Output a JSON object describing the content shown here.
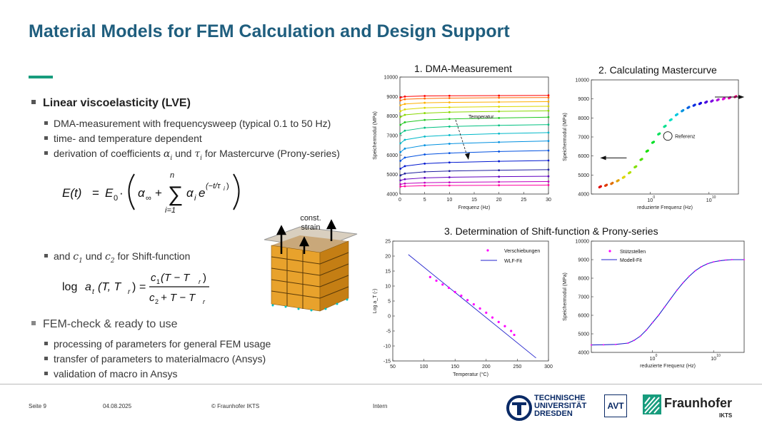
{
  "slide": {
    "title": "Material Models for FEM Calculation and Design Support"
  },
  "content": {
    "lve_heading": "Linear viscoelasticity (LVE)",
    "lve_items": [
      "DMA-measurement with frequencysweep (typical 0.1 to 50 Hz)",
      "time- and temperature dependent",
      "derivation of coefficients",
      "for Mastercurve (Prony-series)"
    ],
    "coef_alpha": "α",
    "coef_alpha_sub": "i",
    "coef_und": "und",
    "coef_tau": "τ",
    "coef_tau_sub": "i",
    "shift_prefix": "and",
    "shift_c1": "c",
    "shift_c1_sub": "1",
    "shift_und": "und",
    "shift_c2": "c",
    "shift_c2_sub": "2",
    "shift_suffix": "for Shift-function",
    "fem_heading": "FEM-check & ready to use",
    "fem_items": [
      "processing of parameters for general FEM usage",
      "transfer of parameters to materialmacro (Ansys)",
      "validation of macro in Ansys"
    ],
    "cube_label_1": "const.",
    "cube_label_2": "strain"
  },
  "charts": {
    "title_1": "1. DMA-Measurement",
    "title_2": "2. Calculating Mastercurve",
    "title_3": "3. Determination of Shift-function & Prony-series"
  },
  "chart_data": [
    {
      "type": "line",
      "xlabel": "Frequenz (Hz)",
      "ylabel": "Speichermodul (MPa)",
      "xlim": [
        0,
        30
      ],
      "ylim": [
        4000,
        10000
      ],
      "xticks": [
        0,
        5,
        10,
        15,
        20,
        25,
        30
      ],
      "yticks": [
        4000,
        5000,
        6000,
        7000,
        8000,
        9000,
        10000
      ],
      "annotation": "Temperatur",
      "x": [
        0.1,
        1,
        5,
        10,
        20,
        30
      ],
      "series": [
        {
          "color": "#ff0000",
          "values": [
            8950,
            9000,
            9030,
            9040,
            9050,
            9060
          ]
        },
        {
          "color": "#ff6a00",
          "values": [
            8800,
            8860,
            8900,
            8920,
            8940,
            8950
          ]
        },
        {
          "color": "#ffb000",
          "values": [
            8550,
            8620,
            8680,
            8700,
            8720,
            8740
          ]
        },
        {
          "color": "#d8d800",
          "values": [
            8250,
            8340,
            8420,
            8450,
            8480,
            8500
          ]
        },
        {
          "color": "#88d800",
          "values": [
            7950,
            8060,
            8150,
            8200,
            8240,
            8270
          ]
        },
        {
          "color": "#20c820",
          "values": [
            7550,
            7680,
            7800,
            7850,
            7900,
            7940
          ]
        },
        {
          "color": "#00c080",
          "values": [
            7100,
            7250,
            7400,
            7460,
            7520,
            7560
          ]
        },
        {
          "color": "#00b8c8",
          "values": [
            6600,
            6780,
            6950,
            7020,
            7100,
            7150
          ]
        },
        {
          "color": "#0090e0",
          "values": [
            6150,
            6330,
            6500,
            6580,
            6660,
            6720
          ]
        },
        {
          "color": "#0050e0",
          "values": [
            5700,
            5870,
            6030,
            6100,
            6180,
            6230
          ]
        },
        {
          "color": "#0018d0",
          "values": [
            5300,
            5430,
            5560,
            5620,
            5680,
            5720
          ]
        },
        {
          "color": "#2020a0",
          "values": [
            4950,
            5050,
            5140,
            5180,
            5220,
            5250
          ]
        },
        {
          "color": "#6000c0",
          "values": [
            4700,
            4760,
            4830,
            4860,
            4890,
            4910
          ]
        },
        {
          "color": "#c000c0",
          "values": [
            4500,
            4540,
            4580,
            4600,
            4620,
            4640
          ]
        },
        {
          "color": "#ff00a0",
          "values": [
            4380,
            4400,
            4430,
            4440,
            4450,
            4460
          ]
        }
      ]
    },
    {
      "type": "scatter",
      "xlabel": "reduzierte Frequenz (Hz)",
      "ylabel": "Speichermodul (MPa)",
      "xscale": "log",
      "xlim": [
        -10,
        15
      ],
      "ylim": [
        4000,
        10000
      ],
      "xticks": [
        0,
        10
      ],
      "yticks": [
        4000,
        5000,
        6000,
        7000,
        8000,
        9000,
        10000
      ],
      "annotation": "Referenz",
      "x_log10": [
        -8.5,
        -7.5,
        -6.5,
        -5.5,
        -4.5,
        -3.5,
        -2.5,
        -1.5,
        -0.5,
        0.5,
        1.5,
        2.5,
        3.5,
        4.5,
        5.5,
        6.5,
        7.5,
        8.5,
        9.5,
        10.5,
        11.5,
        12.5,
        13.5,
        14.5
      ],
      "values": [
        4380,
        4460,
        4560,
        4700,
        4880,
        5120,
        5430,
        5820,
        6260,
        6720,
        7160,
        7560,
        7900,
        8170,
        8380,
        8550,
        8670,
        8760,
        8830,
        8890,
        8950,
        9010,
        9060,
        9120
      ]
    },
    {
      "type": "scatter",
      "legend": [
        "Verschiebungen",
        "WLF-Fit"
      ],
      "xlabel": "Temperatur (°C)",
      "ylabel": "Log a_T (-)",
      "xlim": [
        50,
        300
      ],
      "ylim": [
        -15,
        25
      ],
      "xticks": [
        50,
        100,
        150,
        200,
        250,
        300
      ],
      "yticks": [
        -15,
        -10,
        -5,
        0,
        5,
        10,
        15,
        20,
        25
      ],
      "x": [
        110,
        120,
        130,
        140,
        150,
        160,
        170,
        180,
        190,
        200,
        210,
        220,
        230,
        240,
        245
      ],
      "values": [
        13,
        11.8,
        10.5,
        9.4,
        8,
        6.8,
        5.3,
        3.9,
        2.5,
        1.1,
        -0.5,
        -2,
        -3.4,
        -5,
        -6.3
      ],
      "fit": {
        "x": [
          75,
          280
        ],
        "values": [
          20.5,
          -14
        ]
      }
    },
    {
      "type": "line",
      "legend": [
        "Stützstellen",
        "Modell-Fit"
      ],
      "xlabel": "reduzierte Frequenz (Hz)",
      "ylabel": "Speichermodul (MPa)",
      "xscale": "log",
      "xlim": [
        -10,
        15
      ],
      "ylim": [
        4000,
        10000
      ],
      "xticks": [
        0,
        10
      ],
      "yticks": [
        4000,
        5000,
        6000,
        7000,
        8000,
        9000,
        10000
      ],
      "x_log10": [
        -10,
        -8,
        -6,
        -4,
        -3,
        -2,
        -1,
        0,
        1,
        2,
        3,
        4,
        5,
        6,
        7,
        8,
        9,
        10,
        11,
        12,
        13,
        15
      ],
      "values": [
        4400,
        4410,
        4430,
        4500,
        4650,
        4870,
        5200,
        5600,
        6000,
        6450,
        6900,
        7350,
        7750,
        8100,
        8400,
        8620,
        8780,
        8880,
        8940,
        8980,
        9000,
        9000
      ]
    }
  ],
  "footer": {
    "page": "Seite 9",
    "date": "04.08.2025",
    "copyright": "© Fraunhofer IKTS",
    "classification": "Intern",
    "tud_logo_line1": "TECHNISCHE",
    "tud_logo_line2": "UNIVERSITÄT",
    "tud_logo_line3": "DRESDEN",
    "avt_logo": "AVT",
    "fraunhofer_logo": "Fraunhofer",
    "fraunhofer_sub": "IKTS"
  }
}
